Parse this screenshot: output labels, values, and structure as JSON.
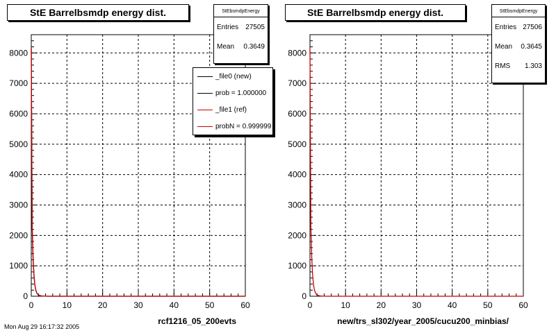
{
  "footer_text": "Mon Aug 29 16:17:32 2005",
  "chart_data": [
    {
      "type": "line",
      "title": "StE Barrelbsmdp energy dist.",
      "xlabel": "rcf1216_05_200evts",
      "ylabel": "",
      "xlim": [
        0,
        60
      ],
      "ylim": [
        0,
        8600
      ],
      "xticks": [
        0,
        10,
        20,
        30,
        40,
        50,
        60
      ],
      "yticks": [
        0,
        1000,
        2000,
        3000,
        4000,
        5000,
        6000,
        7000,
        8000
      ],
      "grid": true,
      "stats": {
        "name": "StEbsmdpEnergy",
        "entries_label": "Entries",
        "entries": "27505",
        "mean_label": "Mean",
        "mean": "0.3649"
      },
      "legend": {
        "placement": "top-right",
        "entries": [
          {
            "label": "_file0 (new)",
            "color": "#000000"
          },
          {
            "label": "prob = 1.000000",
            "color": "#000000"
          },
          {
            "label": "_file1 (ref)",
            "color": "#cc0000"
          },
          {
            "label": "probN = 0.999999",
            "color": "#cc0000"
          }
        ]
      },
      "series": [
        {
          "color": "#000000",
          "x": [
            0,
            0.25,
            0.5,
            0.75,
            1.0,
            1.25,
            1.5,
            1.75,
            2.0,
            2.5,
            3.0,
            3.5,
            4.0,
            4.5,
            5.0,
            60
          ],
          "y": [
            8150,
            2300,
            1250,
            700,
            380,
            210,
            120,
            70,
            40,
            20,
            10,
            5,
            3,
            1,
            0,
            0
          ]
        },
        {
          "color": "#cc0000",
          "x": [
            0,
            0.25,
            0.5,
            0.75,
            1.0,
            1.25,
            1.5,
            1.75,
            2.0,
            2.5,
            3.0,
            3.5,
            4.0,
            4.5,
            5.0,
            60
          ],
          "y": [
            8150,
            2300,
            1250,
            700,
            380,
            210,
            120,
            70,
            40,
            20,
            10,
            5,
            3,
            1,
            0,
            0
          ]
        }
      ]
    },
    {
      "type": "line",
      "title": "StE Barrelbsmdp energy dist.",
      "xlabel": "new/trs_sl302/year_2005/cucu200_minbias/",
      "ylabel": "",
      "xlim": [
        0,
        60
      ],
      "ylim": [
        0,
        8600
      ],
      "xticks": [
        0,
        10,
        20,
        30,
        40,
        50,
        60
      ],
      "yticks": [
        0,
        1000,
        2000,
        3000,
        4000,
        5000,
        6000,
        7000,
        8000
      ],
      "grid": true,
      "stats": {
        "name": "StEbsmdpEnergy",
        "entries_label": "Entries",
        "entries": "27506",
        "mean_label": "Mean",
        "mean": "0.3645",
        "rms_label": "RMS",
        "rms": "1.303"
      },
      "series": [
        {
          "color": "#cc0000",
          "x": [
            0,
            0.25,
            0.5,
            0.75,
            1.0,
            1.25,
            1.5,
            1.75,
            2.0,
            2.5,
            3.0,
            3.5,
            4.0,
            4.5,
            5.0,
            60
          ],
          "y": [
            8150,
            2300,
            1250,
            700,
            380,
            210,
            120,
            70,
            40,
            20,
            10,
            5,
            3,
            1,
            0,
            0
          ]
        }
      ]
    }
  ]
}
